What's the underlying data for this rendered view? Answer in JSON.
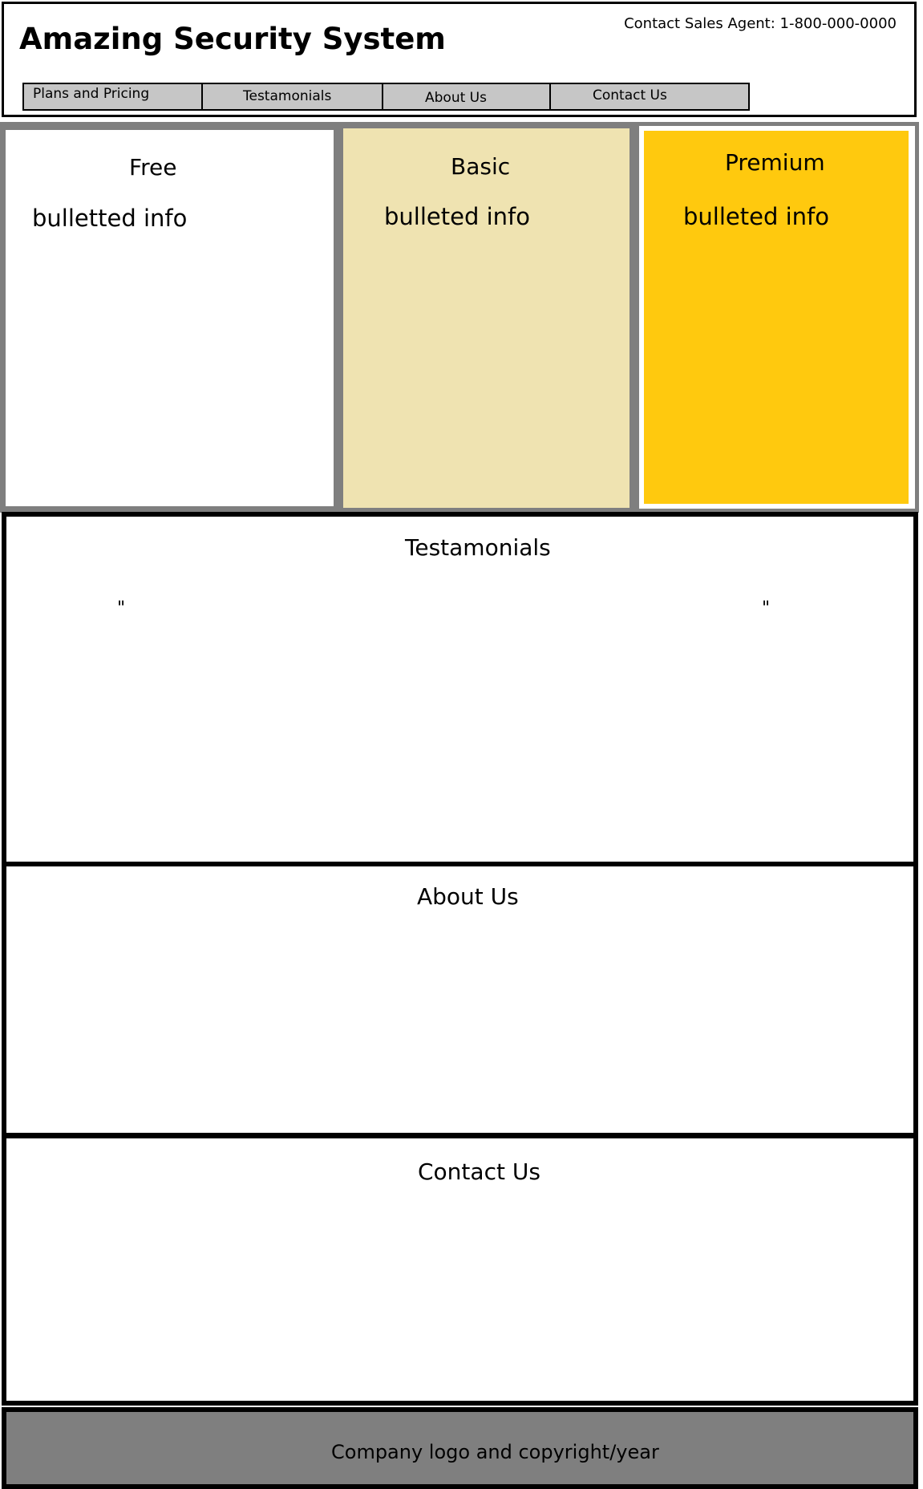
{
  "header": {
    "title": "Amazing Security System",
    "contact_agent": "Contact Sales Agent: 1-800-000-0000",
    "nav": [
      {
        "label": "Plans and Pricing"
      },
      {
        "label": "Testamonials"
      },
      {
        "label": "About Us"
      },
      {
        "label": "Contact Us"
      }
    ]
  },
  "plans": [
    {
      "name": "Free",
      "info": "bulletted info",
      "color": "#ffffff"
    },
    {
      "name": "Basic",
      "info": "bulleted info",
      "color": "#efe3b1"
    },
    {
      "name": "Premium",
      "info": "bulleted info",
      "color": "#ffc90e"
    }
  ],
  "testimonials": {
    "title": "Testamonials",
    "open_quote": "\"",
    "close_quote": "\""
  },
  "about": {
    "title": "About Us"
  },
  "contact": {
    "title": "Contact Us"
  },
  "footer": {
    "text": "Company logo and copyright/year",
    "color": "#7f7f7f"
  }
}
